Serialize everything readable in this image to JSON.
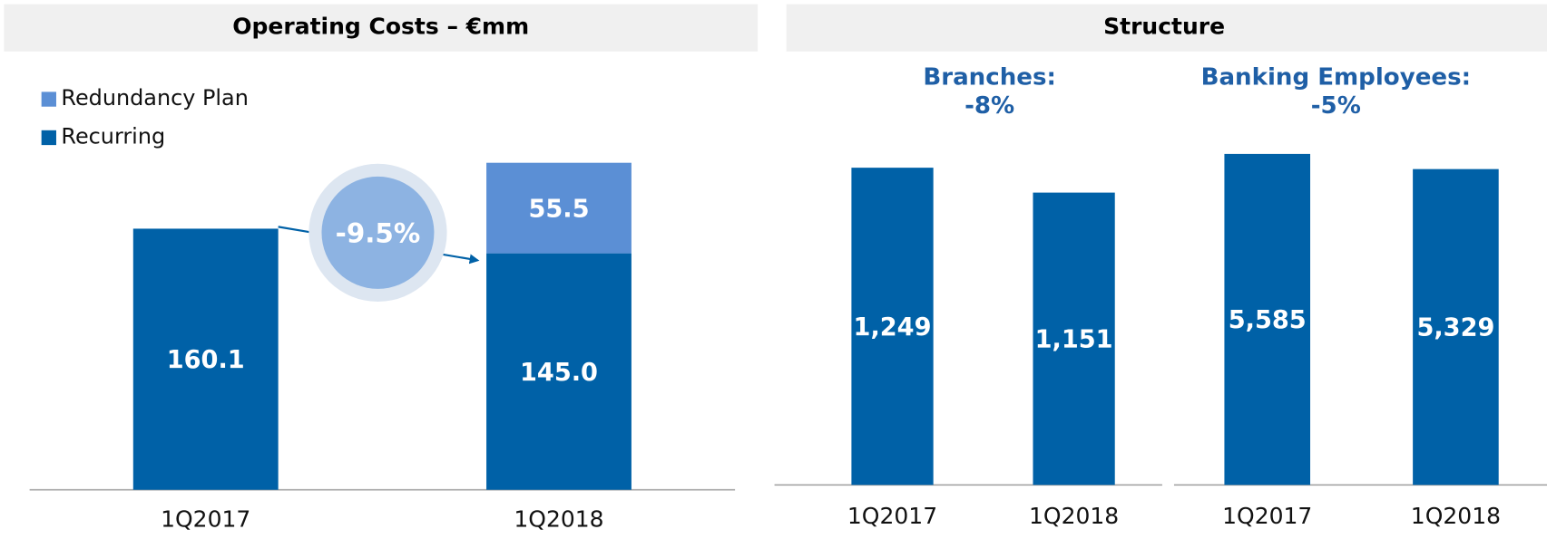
{
  "panel_title": "Structure",
  "chart_data": [
    {
      "type": "stacked_bar",
      "title": "Operating Costs – €mm",
      "annotation": "-9.5%",
      "categories": [
        "1Q2017",
        "1Q2018"
      ],
      "series": [
        {
          "name": "Recurring",
          "color": "#0061a7",
          "values": [
            160.1,
            145.0
          ],
          "value_labels": [
            "160.1",
            "145.0"
          ]
        },
        {
          "name": "Redundancy Plan",
          "color": "#5b8fd5",
          "values": [
            null,
            55.5
          ]
        }
      ],
      "legend_order": [
        1,
        0
      ]
    },
    {
      "type": "bar",
      "title": "Branches:",
      "subtitle": "-8%",
      "categories": [
        "1Q2017",
        "1Q2018"
      ],
      "values": [
        1249,
        1151
      ],
      "value_labels": [
        "1,249",
        "1,151"
      ],
      "color": "#0061a7"
    },
    {
      "type": "bar",
      "title": "Banking Employees:",
      "subtitle": "-5%",
      "categories": [
        "1Q2017",
        "1Q2018"
      ],
      "values": [
        5585,
        5329
      ],
      "value_labels": [
        "5,585",
        "5,329"
      ],
      "color": "#0061a7"
    }
  ]
}
